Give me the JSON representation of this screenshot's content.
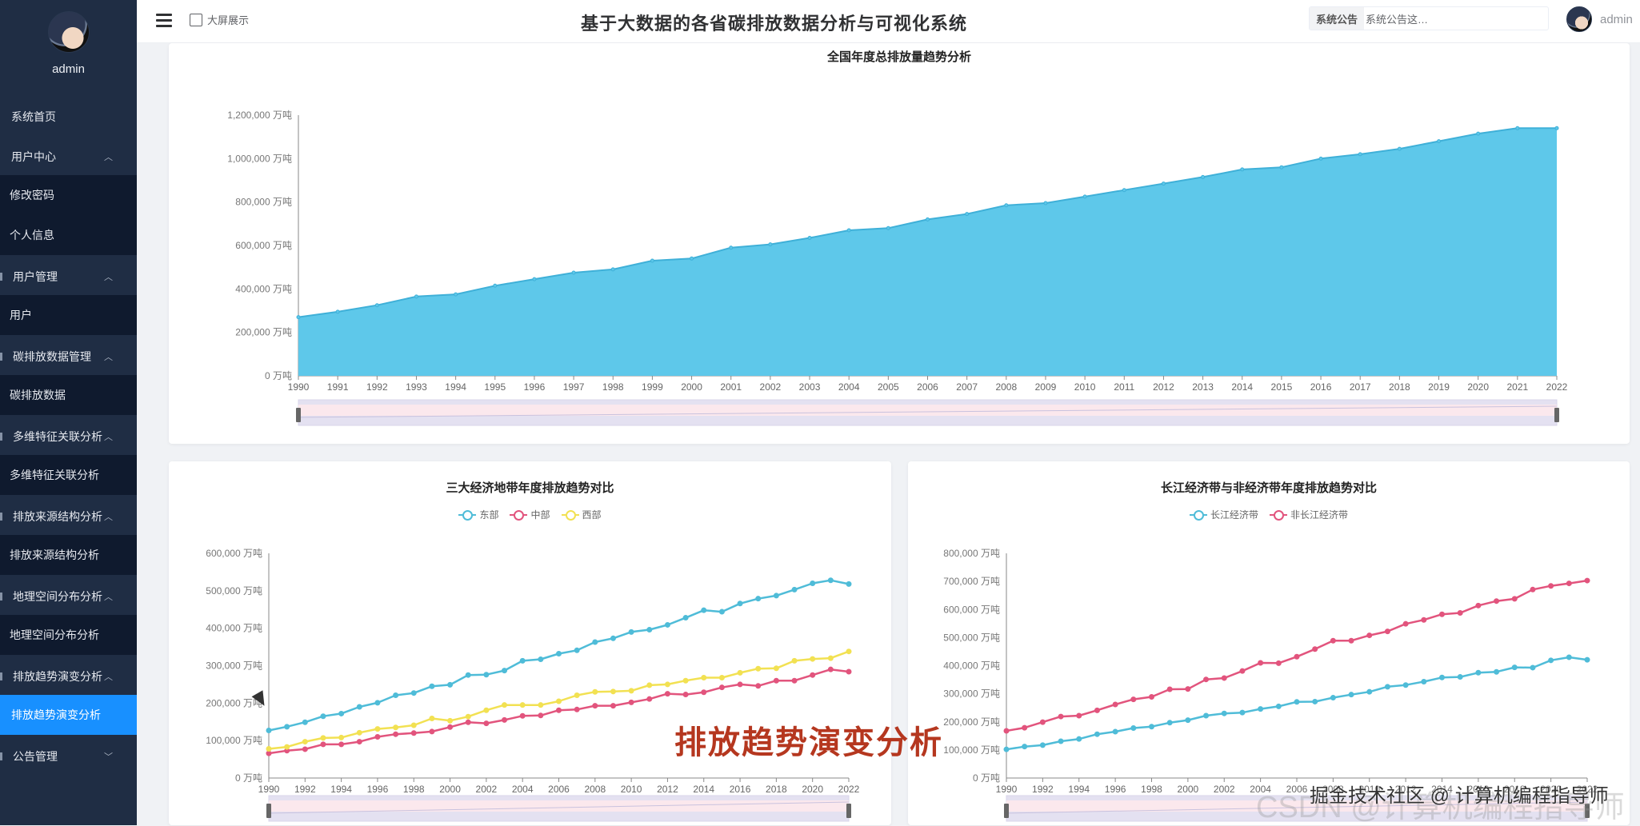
{
  "sidebar": {
    "username": "admin",
    "items": [
      {
        "label": "系统首页",
        "type": "top"
      },
      {
        "label": "用户中心",
        "type": "group",
        "chevron": "^"
      },
      {
        "label": "修改密码",
        "type": "sub"
      },
      {
        "label": "个人信息",
        "type": "sub"
      },
      {
        "label": "用户管理",
        "type": "group",
        "chevron": "^"
      },
      {
        "label": "用户",
        "type": "sub"
      },
      {
        "label": "碳排放数据管理",
        "type": "group",
        "chevron": "^"
      },
      {
        "label": "碳排放数据",
        "type": "sub"
      },
      {
        "label": "多维特征关联分析",
        "type": "group",
        "chevron": "^"
      },
      {
        "label": "多维特征关联分析",
        "type": "sub"
      },
      {
        "label": "排放来源结构分析",
        "type": "group",
        "chevron": "^"
      },
      {
        "label": "排放来源结构分析",
        "type": "sub"
      },
      {
        "label": "地理空间分布分析",
        "type": "group",
        "chevron": "^"
      },
      {
        "label": "地理空间分布分析",
        "type": "sub"
      },
      {
        "label": "排放趋势演变分析",
        "type": "group",
        "chevron": "^"
      },
      {
        "label": "排放趋势演变分析",
        "type": "active"
      },
      {
        "label": "公告管理",
        "type": "group",
        "chevron": "v"
      }
    ]
  },
  "header": {
    "menu_icon": "hamburger-icon",
    "bigscreen_label": "大屏展示",
    "title": "基于大数据的各省碳排放数据分析与可视化系统",
    "notice_tag": "系统公告",
    "notice_text": "系统公告这…",
    "user": "admin"
  },
  "colors": {
    "accent": "#1890ff",
    "sidebar_bg": "#1f2d44",
    "sidebar_sub_bg": "#0f1a2e",
    "area": "#5ec8ea",
    "east": "#4fbcd8",
    "middle": "#e2547d",
    "west": "#f2e152"
  },
  "overlay": {
    "caption": "排放趋势演变分析",
    "watermark": "掘金技术社区 @ 计算机编程指导师",
    "watermark_bg": "CSDN @计算机编程指导师"
  },
  "chart_data": [
    {
      "type": "area",
      "title": "全国年度总排放量趋势分析",
      "x": [
        1990,
        1991,
        1992,
        1993,
        1994,
        1995,
        1996,
        1997,
        1998,
        1999,
        2000,
        2001,
        2002,
        2003,
        2004,
        2005,
        2006,
        2007,
        2008,
        2009,
        2010,
        2011,
        2012,
        2013,
        2014,
        2015,
        2016,
        2017,
        2018,
        2019,
        2020,
        2021,
        2022
      ],
      "values": [
        270000,
        295000,
        325000,
        365000,
        375000,
        415000,
        445000,
        475000,
        490000,
        530000,
        540000,
        590000,
        605000,
        635000,
        670000,
        680000,
        720000,
        745000,
        785000,
        795000,
        825000,
        855000,
        885000,
        915000,
        950000,
        960000,
        1000000,
        1020000,
        1045000,
        1080000,
        1115000,
        1140000,
        1140000
      ],
      "ylim": [
        0,
        1200000
      ],
      "yticks": [
        "0 万吨",
        "200,000 万吨",
        "400,000 万吨",
        "600,000 万吨",
        "800,000 万吨",
        "1,000,000 万吨",
        "1,200,000 万吨"
      ],
      "xlabel": "",
      "ylabel": "",
      "unit": "万吨",
      "grid": false,
      "datazoom": true
    },
    {
      "type": "line",
      "title": "三大经济地带年度排放趋势对比",
      "x": [
        1990,
        1991,
        1992,
        1993,
        1994,
        1995,
        1996,
        1997,
        1998,
        1999,
        2000,
        2001,
        2002,
        2003,
        2004,
        2005,
        2006,
        2007,
        2008,
        2009,
        2010,
        2011,
        2012,
        2013,
        2014,
        2015,
        2016,
        2017,
        2018,
        2019,
        2020,
        2021,
        2022
      ],
      "xticks": [
        "1990",
        "1992",
        "1994",
        "1996",
        "1998",
        "2000",
        "2002",
        "2004",
        "2006",
        "2008",
        "2010",
        "2012",
        "2014",
        "2016",
        "2018",
        "2020",
        "2022"
      ],
      "series": [
        {
          "name": "东部",
          "color": "#4fbcd8",
          "values": [
            127000,
            137000,
            149000,
            165000,
            172000,
            190000,
            201000,
            221000,
            227000,
            245000,
            249000,
            275000,
            276000,
            287000,
            313000,
            317000,
            332000,
            341000,
            363000,
            373000,
            390000,
            396000,
            409000,
            428000,
            448000,
            444000,
            466000,
            479000,
            487000,
            503000,
            520000,
            528000,
            518000
          ]
        },
        {
          "name": "中部",
          "color": "#e2547d",
          "values": [
            66000,
            73000,
            77000,
            90000,
            90000,
            97000,
            110000,
            117000,
            120000,
            124000,
            136000,
            149000,
            146000,
            155000,
            166000,
            167000,
            181000,
            183000,
            193000,
            193000,
            202000,
            211000,
            225000,
            223000,
            229000,
            242000,
            250000,
            246000,
            260000,
            260000,
            275000,
            290000,
            284000
          ]
        },
        {
          "name": "西部",
          "color": "#f2e152",
          "values": [
            78000,
            83000,
            97000,
            107000,
            108000,
            121000,
            131000,
            135000,
            141000,
            159000,
            153000,
            164000,
            181000,
            195000,
            195000,
            195000,
            205000,
            221000,
            230000,
            231000,
            233000,
            248000,
            250000,
            260000,
            268000,
            268000,
            281000,
            292000,
            293000,
            313000,
            318000,
            320000,
            338000
          ]
        }
      ],
      "ylim": [
        0,
        600000
      ],
      "yticks": [
        "0 万吨",
        "100,000 万吨",
        "200,000 万吨",
        "300,000 万吨",
        "400,000 万吨",
        "500,000 万吨",
        "600,000 万吨"
      ],
      "legend_position": "top",
      "datazoom": true
    },
    {
      "type": "line",
      "title": "长江经济带与非经济带年度排放趋势对比",
      "x": [
        1990,
        1991,
        1992,
        1993,
        1994,
        1995,
        1996,
        1997,
        1998,
        1999,
        2000,
        2001,
        2002,
        2003,
        2004,
        2005,
        2006,
        2007,
        2008,
        2009,
        2010,
        2011,
        2012,
        2013,
        2014,
        2015,
        2016,
        2017,
        2018,
        2019,
        2020,
        2021,
        2022
      ],
      "xticks": [
        "1990",
        "1992",
        "1994",
        "1996",
        "1998",
        "2000",
        "2002",
        "2004",
        "2006",
        "2008",
        "2010",
        "2012",
        "2014",
        "2016",
        "2018",
        "2020",
        "2022"
      ],
      "series": [
        {
          "name": "长江经济带",
          "color": "#4fbcd8",
          "values": [
            102000,
            112000,
            117000,
            131000,
            139000,
            156000,
            165000,
            178000,
            183000,
            197000,
            206000,
            222000,
            230000,
            233000,
            246000,
            255000,
            271000,
            272000,
            286000,
            297000,
            307000,
            325000,
            331000,
            343000,
            358000,
            360000,
            375000,
            378000,
            394000,
            393000,
            419000,
            430000,
            421000
          ]
        },
        {
          "name": "非长江经济带",
          "color": "#e2547d",
          "values": [
            168000,
            179000,
            199000,
            219000,
            222000,
            241000,
            262000,
            280000,
            289000,
            316000,
            317000,
            351000,
            356000,
            381000,
            410000,
            409000,
            432000,
            459000,
            489000,
            489000,
            508000,
            522000,
            549000,
            563000,
            583000,
            588000,
            614000,
            630000,
            638000,
            671000,
            684000,
            693000,
            703000
          ]
        }
      ],
      "ylim": [
        0,
        800000
      ],
      "yticks": [
        "0 万吨",
        "100,000 万吨",
        "200,000 万吨",
        "300,000 万吨",
        "400,000 万吨",
        "500,000 万吨",
        "600,000 万吨",
        "700,000 万吨",
        "800,000 万吨"
      ],
      "legend_position": "top",
      "datazoom": true
    }
  ]
}
